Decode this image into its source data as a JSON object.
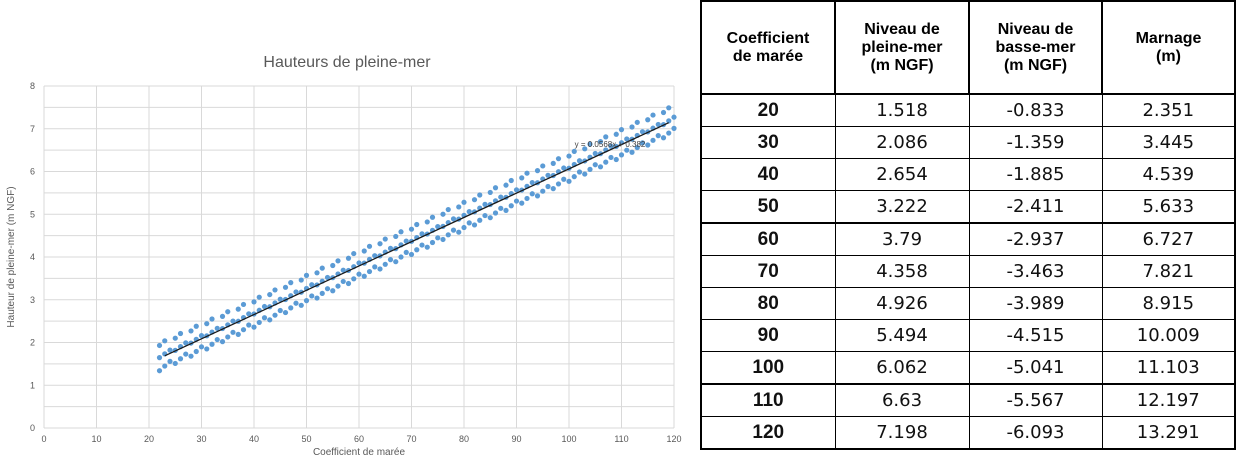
{
  "chart_data": {
    "type": "scatter",
    "title": "Hauteurs de pleine-mer",
    "xlabel": "Coefficient de marée",
    "ylabel": "Hauteur de pleine-mer (m NGF)",
    "xlim": [
      0,
      120
    ],
    "ylim": [
      0,
      8
    ],
    "x_ticks": [
      0,
      10,
      20,
      30,
      40,
      50,
      60,
      70,
      80,
      90,
      100,
      110,
      120
    ],
    "y_ticks": [
      0,
      1,
      2,
      3,
      4,
      5,
      6,
      7,
      8
    ],
    "grid": true,
    "series": [
      {
        "color": "#5b9bd5",
        "x": [
          23,
          26,
          29,
          32,
          35,
          38,
          41,
          44,
          47,
          50,
          53,
          56,
          59,
          62,
          65,
          68,
          71,
          74,
          77,
          80,
          83,
          86,
          89,
          92,
          95,
          98,
          101,
          104,
          107,
          110,
          113,
          116,
          119
        ],
        "y": [
          1.69,
          1.86,
          2.03,
          2.2,
          2.37,
          2.54,
          2.71,
          2.88,
          3.05,
          3.22,
          3.39,
          3.56,
          3.73,
          3.9,
          4.07,
          4.24,
          4.41,
          4.58,
          4.76,
          4.93,
          5.1,
          5.27,
          5.44,
          5.61,
          5.78,
          5.95,
          6.12,
          6.29,
          6.46,
          6.63,
          6.8,
          6.97,
          7.14
        ],
        "spread": 0.35
      }
    ],
    "trendline": {
      "equation": "y = 0.0568x + 0.382",
      "slope": 0.0568,
      "intercept": 0.382,
      "x_range": [
        23,
        119
      ],
      "color": "#1a1a1a"
    }
  },
  "table": {
    "headers": [
      [
        "Coefficient",
        "de marée"
      ],
      [
        "Niveau de",
        "pleine-mer",
        "(m NGF)"
      ],
      [
        "Niveau de",
        "basse-mer",
        "(m NGF)"
      ],
      [
        "Marnage",
        "(m)"
      ]
    ],
    "rows": [
      [
        "20",
        "1.518",
        "-0.833",
        "2.351"
      ],
      [
        "30",
        "2.086",
        "-1.359",
        "3.445"
      ],
      [
        "40",
        "2.654",
        "-1.885",
        "4.539"
      ],
      [
        "50",
        "3.222",
        "-2.411",
        "5.633"
      ],
      [
        "60",
        "3.79",
        "-2.937",
        "6.727"
      ],
      [
        "70",
        "4.358",
        "-3.463",
        "7.821"
      ],
      [
        "80",
        "4.926",
        "-3.989",
        "8.915"
      ],
      [
        "90",
        "5.494",
        "-4.515",
        "10.009"
      ],
      [
        "100",
        "6.062",
        "-5.041",
        "11.103"
      ],
      [
        "110",
        "6.63",
        "-5.567",
        "12.197"
      ],
      [
        "120",
        "7.198",
        "-6.093",
        "13.291"
      ]
    ],
    "thick_separator_rows": [
      4,
      9
    ]
  }
}
